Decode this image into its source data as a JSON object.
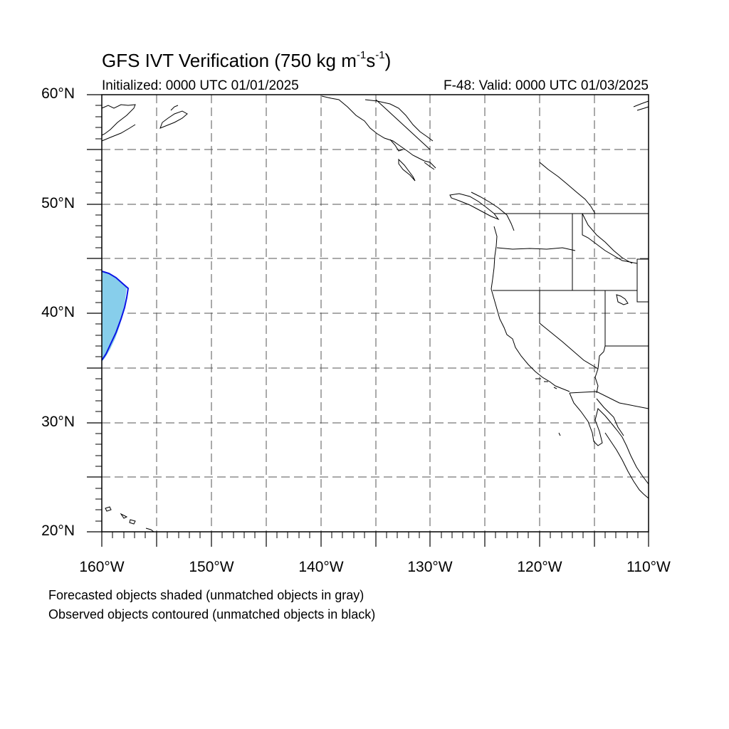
{
  "title": {
    "main": "GFS IVT Verification (750 kg m",
    "exp1": "-1",
    "mid": "s",
    "exp2": "-1",
    "end": ")"
  },
  "subtitle_left": "Initialized: 0000 UTC 01/01/2025",
  "subtitle_right": "F-48: Valid: 0000 UTC 01/03/2025",
  "lat_labels": [
    "60°N",
    "50°N",
    "40°N",
    "30°N",
    "20°N"
  ],
  "lon_labels": [
    "160°W",
    "150°W",
    "140°W",
    "130°W",
    "120°W",
    "110°W"
  ],
  "notes": [
    "Forecasted objects shaded (unmatched objects in gray)",
    "Observed objects contoured (unmatched objects in black)"
  ],
  "colors": {
    "forecast_shade": "#87ceeb",
    "observed_contour": "#0a14e6",
    "coastline": "#000000",
    "grid": "#555555"
  }
}
